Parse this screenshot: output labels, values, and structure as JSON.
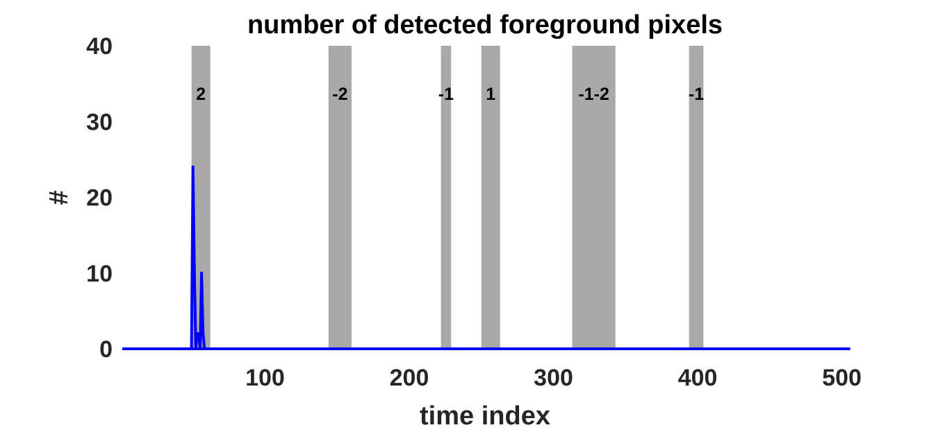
{
  "chart_data": {
    "type": "line",
    "title": "number of detected foreground pixels",
    "xlabel": "time index",
    "ylabel": "#",
    "xlim": [
      1,
      505
    ],
    "ylim": [
      0,
      40
    ],
    "xticks": [
      100,
      200,
      300,
      400,
      500
    ],
    "yticks": [
      0,
      10,
      20,
      30,
      40
    ],
    "grid": false,
    "line_color": "#0000ff",
    "band_color": "#a9a9a9",
    "shaded_intervals": [
      {
        "start": 49,
        "end": 62,
        "label": "2"
      },
      {
        "start": 144,
        "end": 160,
        "label": "-2"
      },
      {
        "start": 222,
        "end": 229,
        "label": "-1"
      },
      {
        "start": 250,
        "end": 263,
        "label": "1"
      },
      {
        "start": 313,
        "end": 343,
        "label": "-1-2"
      },
      {
        "start": 394,
        "end": 404,
        "label": "-1"
      }
    ],
    "series": [
      {
        "points": [
          [
            1,
            0
          ],
          [
            49,
            0
          ],
          [
            50,
            24
          ],
          [
            51,
            10
          ],
          [
            52,
            0
          ],
          [
            53,
            2
          ],
          [
            54,
            2
          ],
          [
            55,
            0
          ],
          [
            56,
            10
          ],
          [
            57,
            2
          ],
          [
            58,
            0
          ],
          [
            505,
            0
          ],
          [
            1,
            0
          ]
        ]
      }
    ]
  }
}
